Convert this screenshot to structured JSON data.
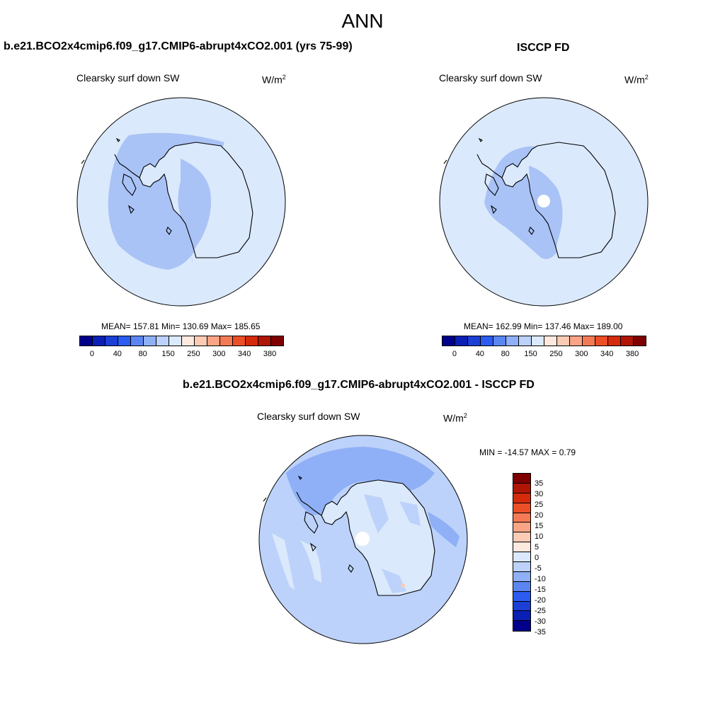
{
  "title": "ANN",
  "panels": [
    {
      "title": "b.e21.BCO2x4cmip6.f09_g17.CMIP6-abrupt4xCO2.001 (yrs 75-99)",
      "variable": "Clearsky surf down SW",
      "units": "W/m",
      "units_sup": "2",
      "stats": "MEAN= 157.81  Min= 130.69  Max= 185.65",
      "colorbar_ticks": [
        "0",
        "40",
        "80",
        "150",
        "250",
        "300",
        "340",
        "380"
      ]
    },
    {
      "title": "ISCCP FD",
      "variable": "Clearsky surf down SW",
      "units": "W/m",
      "units_sup": "2",
      "stats": "MEAN= 162.99  Min= 137.46  Max= 189.00",
      "colorbar_ticks": [
        "0",
        "40",
        "80",
        "150",
        "250",
        "300",
        "340",
        "380"
      ]
    },
    {
      "title": "b.e21.BCO2x4cmip6.f09_g17.CMIP6-abrupt4xCO2.001 - ISCCP FD",
      "variable": "Clearsky surf down SW",
      "units": "W/m",
      "units_sup": "2",
      "stats": "MIN = -14.57 MAX =   0.79",
      "colorbar_ticks": [
        "35",
        "30",
        "25",
        "20",
        "15",
        "10",
        "5",
        "0",
        "-5",
        "-10",
        "-15",
        "-20",
        "-25",
        "-30",
        "-35"
      ]
    }
  ],
  "abs_colors": [
    "#00008b",
    "#0a1fb4",
    "#1c3fd6",
    "#2b5bf0",
    "#5b86f2",
    "#8fb0f6",
    "#bcd2fa",
    "#dbe9fc",
    "#fde9dd",
    "#fbcbb5",
    "#f9a585",
    "#f47a55",
    "#ec4e26",
    "#d52a0c",
    "#b11505",
    "#7f0000"
  ],
  "diff_colors": [
    "#7f0000",
    "#b11505",
    "#d52a0c",
    "#ec4e26",
    "#f47a55",
    "#f9a585",
    "#fbcbb5",
    "#fde9dd",
    "#dbe9fc",
    "#bcd2fa",
    "#8fb0f6",
    "#5b86f2",
    "#2b5bf0",
    "#1c3fd6",
    "#0a1fb4",
    "#00008b"
  ]
}
